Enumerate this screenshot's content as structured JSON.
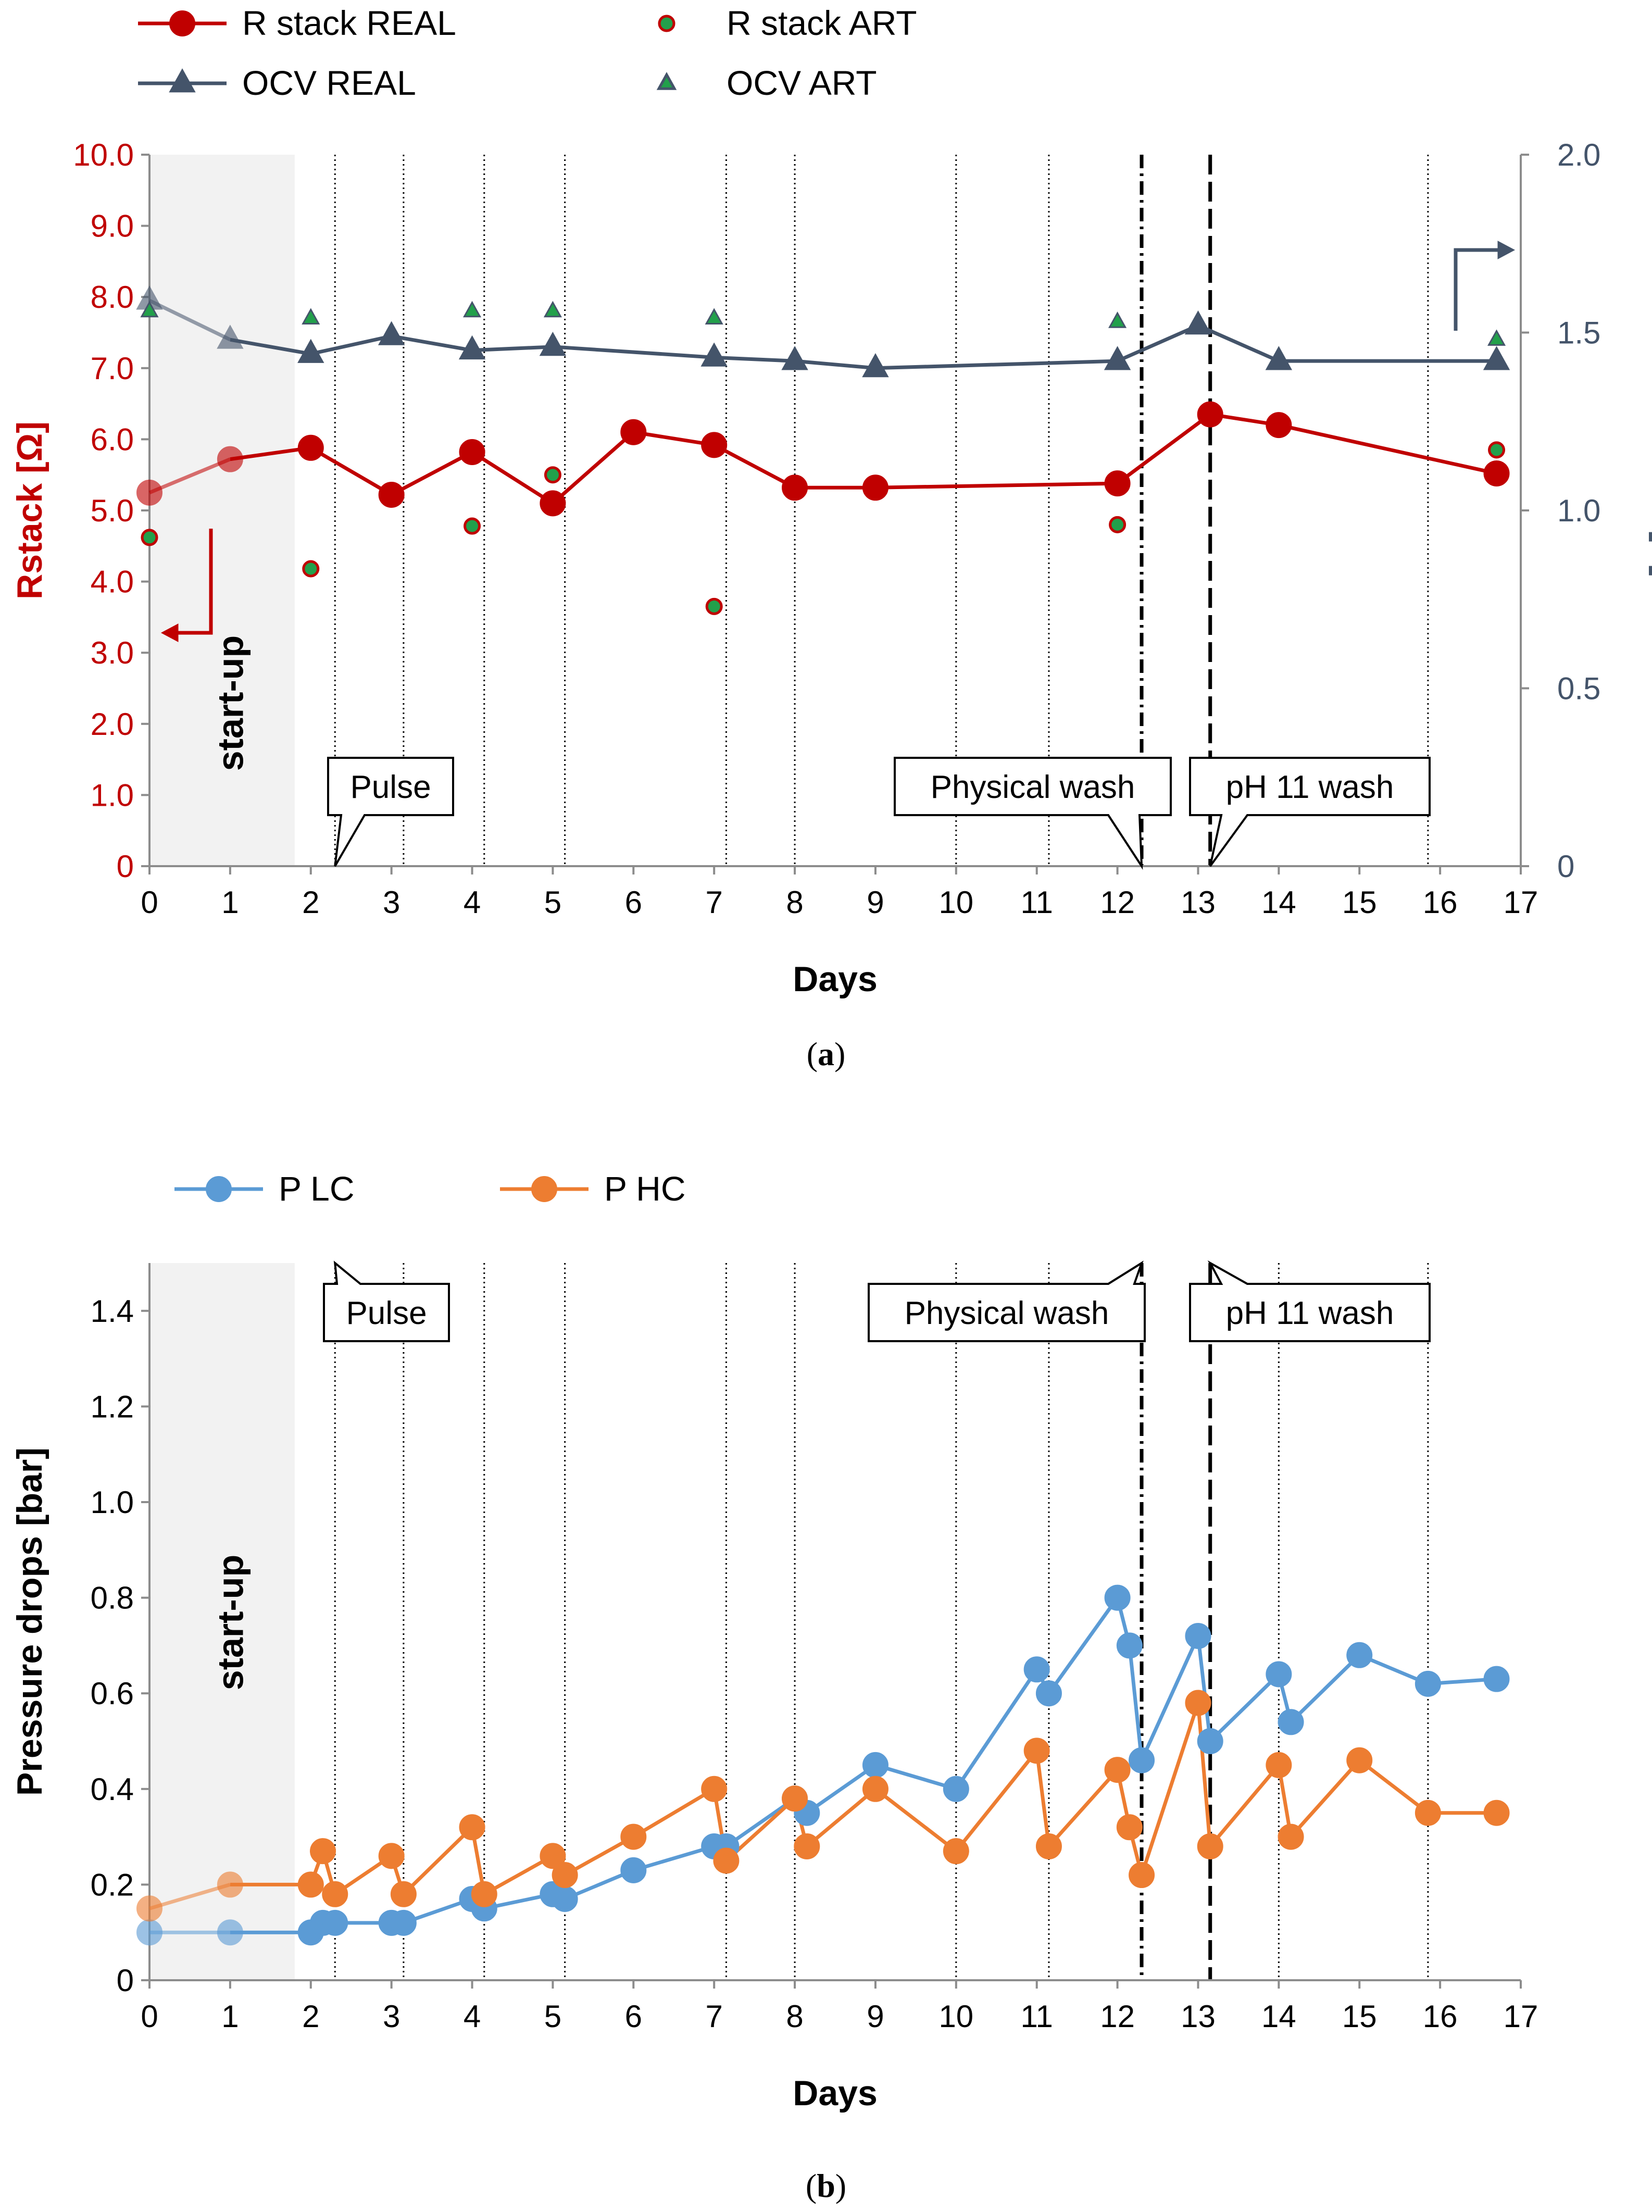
{
  "chart_data": [
    {
      "id": "a",
      "type": "line",
      "caption": "(a)",
      "caption_letter": "a",
      "xlabel": "Days",
      "ylabel": "Rstack [Ω]",
      "y2label": "OCV [V]",
      "xlim": [
        0,
        17
      ],
      "ylim": [
        0,
        10
      ],
      "y2lim": [
        0,
        2
      ],
      "x_ticks": [
        "0",
        "1",
        "2",
        "3",
        "4",
        "5",
        "6",
        "7",
        "8",
        "9",
        "10",
        "11",
        "12",
        "13",
        "14",
        "15",
        "16",
        "17"
      ],
      "y_ticks": [
        "0",
        "1.0",
        "2.0",
        "3.0",
        "4.0",
        "5.0",
        "6.0",
        "7.0",
        "8.0",
        "9.0",
        "10.0"
      ],
      "y2_ticks": [
        "0",
        "0.5",
        "1.0",
        "1.5",
        "2.0"
      ],
      "colors": {
        "rstack": "#c00000",
        "ocv": "#44546a",
        "art_fill": "#22a04b"
      },
      "startup_region": {
        "x": [
          0,
          1.8
        ],
        "label": "start-up"
      },
      "dotted_lines": [
        2.3,
        3.15,
        4.15,
        5.15,
        7.15,
        8.0,
        10.0,
        11.15,
        15.85
      ],
      "event_lines": [
        {
          "x": 12.3,
          "style": "dashdot",
          "label": "Physical wash"
        },
        {
          "x": 13.15,
          "style": "dash",
          "label": "pH 11 wash"
        }
      ],
      "callouts": [
        {
          "label": "Pulse",
          "target_x": 2.3
        },
        {
          "label": "Physical wash",
          "target_x": 12.3
        },
        {
          "label": "pH 11 wash",
          "target_x": 13.15
        }
      ],
      "series": [
        {
          "name": "R stack REAL",
          "axis": "left",
          "style": "line-circle",
          "x": [
            0,
            1,
            2,
            3,
            4,
            5,
            6,
            7,
            8,
            9,
            12,
            13.15,
            14,
            16.7
          ],
          "y": [
            5.25,
            5.72,
            5.88,
            5.22,
            5.82,
            5.1,
            6.1,
            5.92,
            5.32,
            5.32,
            5.38,
            6.35,
            6.2,
            5.52
          ]
        },
        {
          "name": "R stack ART",
          "axis": "left",
          "style": "marker-circle",
          "x": [
            0,
            2,
            4,
            5,
            7,
            12,
            16.7
          ],
          "y": [
            4.62,
            4.18,
            4.78,
            5.5,
            3.65,
            4.8,
            5.85
          ]
        },
        {
          "name": "OCV REAL",
          "axis": "right",
          "style": "line-triangle",
          "x": [
            0,
            1,
            2,
            3,
            4,
            5,
            7,
            8,
            9,
            12,
            13,
            14,
            16.7
          ],
          "y": [
            1.59,
            1.48,
            1.44,
            1.49,
            1.45,
            1.46,
            1.43,
            1.42,
            1.4,
            1.42,
            1.52,
            1.42,
            1.42
          ]
        },
        {
          "name": "OCV ART",
          "axis": "right",
          "style": "marker-triangle",
          "x": [
            0,
            2,
            4,
            5,
            7,
            12,
            16.7
          ],
          "y": [
            1.56,
            1.54,
            1.56,
            1.56,
            1.54,
            1.53,
            1.48
          ]
        }
      ]
    },
    {
      "id": "b",
      "type": "line",
      "caption": "(b)",
      "caption_letter": "b",
      "xlabel": "Days",
      "ylabel": "Pressure drops [bar]",
      "xlim": [
        0,
        17
      ],
      "ylim": [
        0,
        1.5
      ],
      "x_ticks": [
        "0",
        "1",
        "2",
        "3",
        "4",
        "5",
        "6",
        "7",
        "8",
        "9",
        "10",
        "11",
        "12",
        "13",
        "14",
        "15",
        "16",
        "17"
      ],
      "y_ticks": [
        "0",
        "0.2",
        "0.4",
        "0.6",
        "0.8",
        "1.0",
        "1.2",
        "1.4"
      ],
      "colors": {
        "p_lc": "#5b9bd5",
        "p_hc": "#ed7d31"
      },
      "startup_region": {
        "x": [
          0,
          1.8
        ],
        "label": "start-up"
      },
      "dotted_lines": [
        2.3,
        3.15,
        4.15,
        5.15,
        7.15,
        8.0,
        10.0,
        11.15,
        14.0,
        15.85
      ],
      "event_lines": [
        {
          "x": 12.3,
          "style": "dashdot",
          "label": "Physical wash"
        },
        {
          "x": 13.15,
          "style": "dash",
          "label": "pH 11 wash"
        }
      ],
      "callouts": [
        {
          "label": "Pulse",
          "target_x": 2.3
        },
        {
          "label": "Physical wash",
          "target_x": 12.3
        },
        {
          "label": "pH 11 wash",
          "target_x": 13.15
        }
      ],
      "series": [
        {
          "name": "P LC",
          "x": [
            0,
            1,
            2,
            2.15,
            2.3,
            3,
            3.15,
            4,
            4.15,
            5,
            5.15,
            6,
            7,
            7.15,
            8,
            8.15,
            9,
            10,
            11,
            11.15,
            12,
            12.15,
            12.3,
            13,
            13.15,
            14,
            14.15,
            15,
            15.85,
            16.7
          ],
          "y": [
            0.1,
            0.1,
            0.1,
            0.12,
            0.12,
            0.12,
            0.12,
            0.17,
            0.15,
            0.18,
            0.17,
            0.23,
            0.28,
            0.28,
            0.38,
            0.35,
            0.45,
            0.4,
            0.65,
            0.6,
            0.8,
            0.7,
            0.46,
            0.72,
            0.5,
            0.64,
            0.54,
            0.68,
            0.62,
            0.63
          ]
        },
        {
          "name": "P HC",
          "x": [
            0,
            1,
            2,
            2.15,
            2.3,
            3,
            3.15,
            4,
            4.15,
            5,
            5.15,
            6,
            7,
            7.15,
            8,
            8.15,
            9,
            10,
            11,
            11.15,
            12,
            12.15,
            12.3,
            13,
            13.15,
            14,
            14.15,
            15,
            15.85,
            16.7
          ],
          "y": [
            0.15,
            0.2,
            0.2,
            0.27,
            0.18,
            0.26,
            0.18,
            0.32,
            0.18,
            0.26,
            0.22,
            0.3,
            0.4,
            0.25,
            0.38,
            0.28,
            0.4,
            0.27,
            0.48,
            0.28,
            0.44,
            0.32,
            0.22,
            0.58,
            0.28,
            0.45,
            0.3,
            0.46,
            0.35,
            0.35
          ]
        }
      ]
    }
  ]
}
